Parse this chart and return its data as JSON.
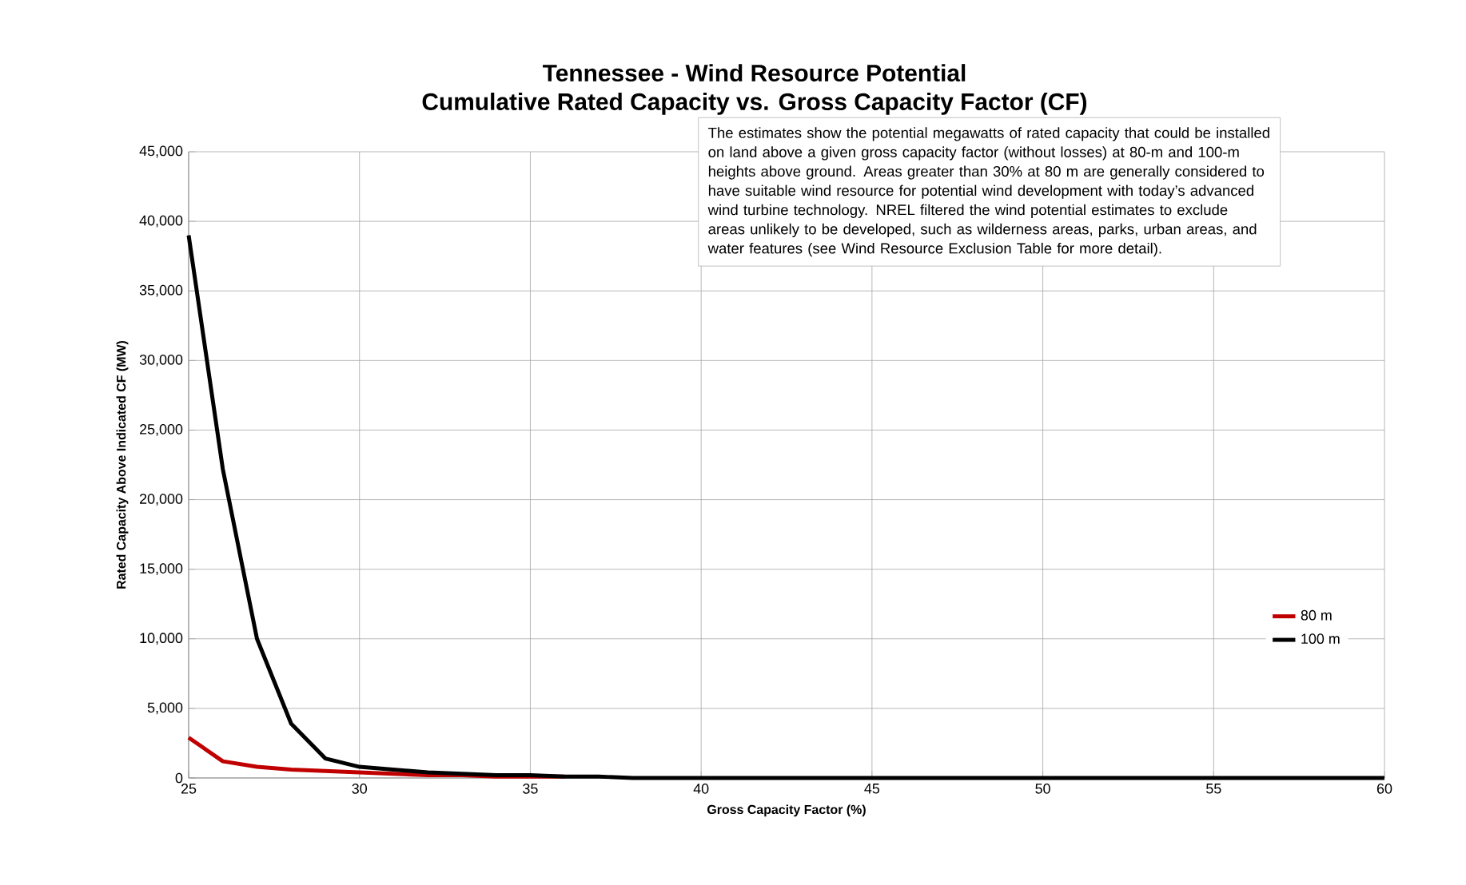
{
  "chart_data": {
    "type": "line",
    "title": "Tennessee - Wind Resource Potential",
    "subtitle": "Cumulative Rated Capacity vs. Gross Capacity Factor (CF)",
    "xlabel": "Gross Capacity Factor (%)",
    "ylabel": "Rated Capacity Above Indicated CF (MW)",
    "annotations": [
      "The estimates show the potential megawatts of rated capacity that could be installed on land above a given gross capacity factor (without losses) at 80-m and 100-m heights above ground. Areas greater than 30% at 80 m are generally considered to have suitable wind resource for potential wind development with today’s advanced wind turbine technology. NREL filtered the wind potential estimates to exclude areas unlikely to be developed, such as wilderness areas, parks, urban areas, and water features (see Wind Resource Exclusion Table for more detail)."
    ],
    "x": [
      25,
      26,
      27,
      28,
      29,
      30,
      31,
      32,
      33,
      34,
      35,
      36,
      37,
      38,
      39,
      40,
      45,
      50,
      55,
      60
    ],
    "series": [
      {
        "name": "80 m",
        "color": "#c00000",
        "values": [
          2900,
          1200,
          800,
          600,
          500,
          400,
          300,
          200,
          200,
          100,
          100,
          100,
          null,
          null,
          null,
          null,
          null,
          null,
          null,
          null
        ]
      },
      {
        "name": "100 m",
        "color": "#000000",
        "values": [
          39000,
          22200,
          10000,
          3900,
          1400,
          800,
          600,
          400,
          300,
          200,
          200,
          100,
          100,
          0,
          0,
          0,
          0,
          0,
          0,
          0
        ]
      }
    ],
    "xlim": [
      25,
      60
    ],
    "xticks": [
      25,
      30,
      35,
      40,
      45,
      50,
      55,
      60
    ],
    "ylim": [
      0,
      45000
    ],
    "yticks": [
      {
        "value": 0,
        "label": "0"
      },
      {
        "value": 5000,
        "label": "5,000"
      },
      {
        "value": 10000,
        "label": "10,000"
      },
      {
        "value": 15000,
        "label": "15,000"
      },
      {
        "value": 20000,
        "label": "20,000"
      },
      {
        "value": 25000,
        "label": "25,000"
      },
      {
        "value": 30000,
        "label": "30,000"
      },
      {
        "value": 35000,
        "label": "35,000"
      },
      {
        "value": 40000,
        "label": "40,000"
      },
      {
        "value": 45000,
        "label": "45,000"
      }
    ],
    "grid": true,
    "legend": "right",
    "marker": "none",
    "line_style": "solid"
  }
}
